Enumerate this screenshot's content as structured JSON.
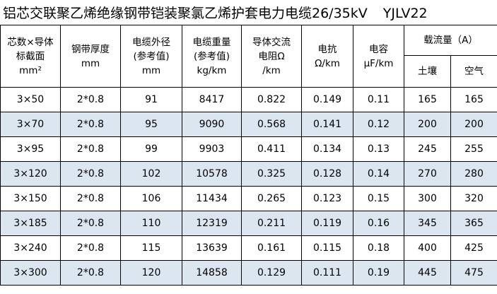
{
  "title": {
    "text": "铝芯交联聚乙烯绝缘钢带铠装聚氯乙烯护套电力电缆26/35kV",
    "model": "YJLV22"
  },
  "headers": {
    "section": [
      "芯数×导体",
      "标截面",
      "mm²"
    ],
    "steel_tape": [
      "钢带厚度",
      "mm"
    ],
    "outer_diameter": [
      "电缆外径",
      "(参考值)",
      "mm"
    ],
    "weight": [
      "电缆重量",
      "(参考值)",
      "kg/km"
    ],
    "ac_resistance": [
      "导体交流",
      "电阻Ω",
      "/km"
    ],
    "inductance": [
      "电抗",
      "Ω/km"
    ],
    "capacitance": [
      "电容",
      "μF/km"
    ],
    "ampacity": "载流量（A）",
    "soil": "土壤",
    "air": "空气"
  },
  "rows": [
    [
      "3×50",
      "2*0.8",
      "91",
      "8417",
      "0.822",
      "0.149",
      "0.11",
      "165",
      "165"
    ],
    [
      "3×70",
      "2*0.8",
      "95",
      "9090",
      "0.568",
      "0.141",
      "0.12",
      "200",
      "200"
    ],
    [
      "3×95",
      "2*0.8",
      "99",
      "9903",
      "0.411",
      "0.134",
      "0.13",
      "245",
      "255"
    ],
    [
      "3×120",
      "2*0.8",
      "102",
      "10578",
      "0.325",
      "0.128",
      "0.14",
      "270",
      "280"
    ],
    [
      "3×150",
      "2*0.8",
      "106",
      "11434",
      "0.265",
      "0.123",
      "0.15",
      "300",
      "320"
    ],
    [
      "3×185",
      "2*0.8",
      "110",
      "12319",
      "0.211",
      "0.119",
      "0.16",
      "345",
      "365"
    ],
    [
      "3×240",
      "2*0.8",
      "115",
      "13639",
      "0.161",
      "0.115",
      "0.18",
      "400",
      "425"
    ],
    [
      "3×300",
      "2*0.8",
      "120",
      "14858",
      "0.129",
      "0.111",
      "0.19",
      "445",
      "475"
    ]
  ],
  "colors": {
    "stripe": "#dce6f1",
    "border": "#000000"
  }
}
